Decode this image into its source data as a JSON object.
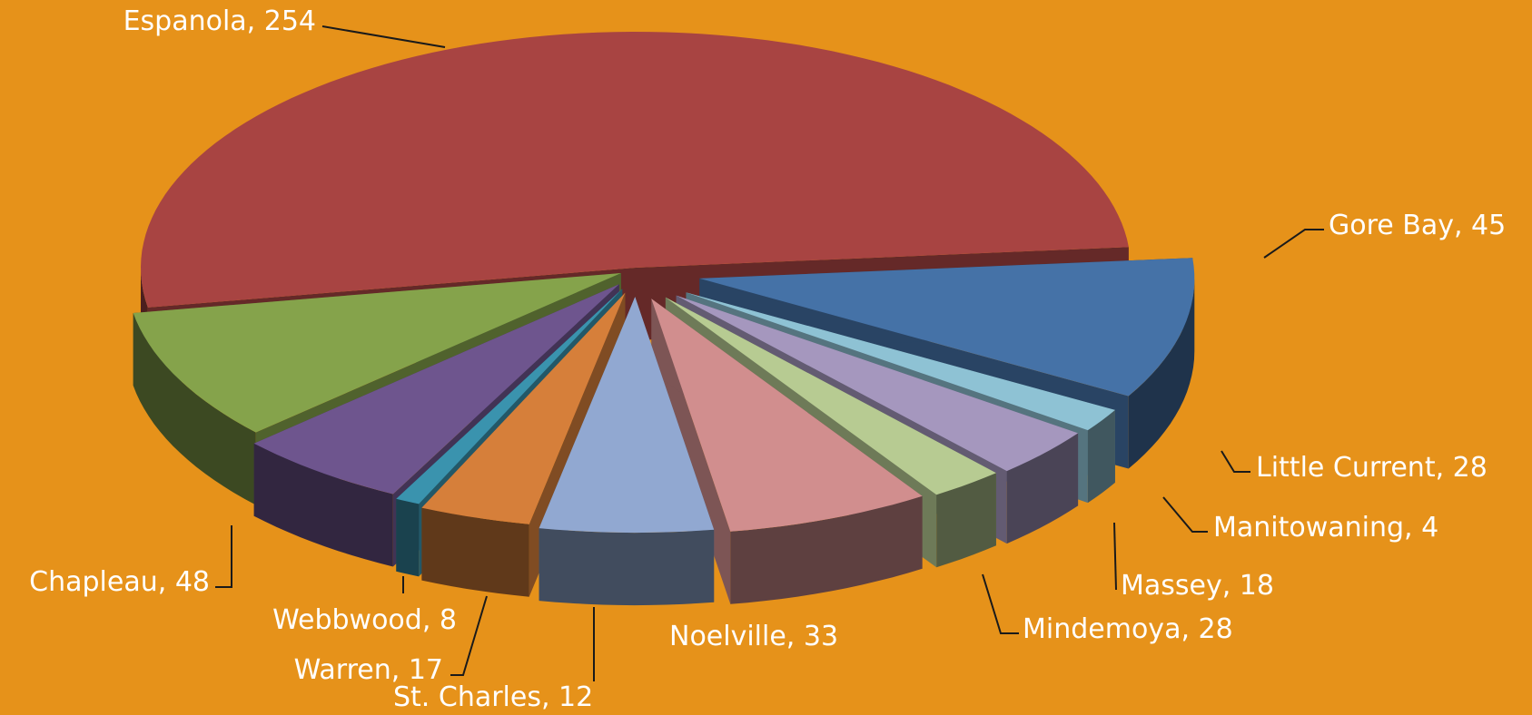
{
  "chart_data": {
    "type": "pie",
    "style": "3d-exploded",
    "background": "#E6921A",
    "legend": "none",
    "data_labels": "outside, name and value",
    "slices": [
      {
        "name": "Espanola",
        "value": 254,
        "label": "Espanola, 254",
        "color": "#A84442"
      },
      {
        "name": "Gore Bay",
        "value": 45,
        "label": "Gore Bay, 45",
        "color": "#85A34B"
      },
      {
        "name": "Little Current",
        "value": 28,
        "label": "Little Current, 28",
        "color": "#6E558E"
      },
      {
        "name": "Manitowaning",
        "value": 4,
        "label": "Manitowaning, 4",
        "color": "#3A93AE"
      },
      {
        "name": "Massey",
        "value": 18,
        "label": "Massey, 18",
        "color": "#D67F3A"
      },
      {
        "name": "Mindemoya",
        "value": 28,
        "label": "Mindemoya, 28",
        "color": "#91A8D1"
      },
      {
        "name": "Noelville",
        "value": 33,
        "label": "Noelville, 33",
        "color": "#D18E8E"
      },
      {
        "name": "St. Charles",
        "value": 12,
        "label": "St. Charles, 12",
        "color": "#B7CB92"
      },
      {
        "name": "Warren",
        "value": 17,
        "label": "Warren, 17",
        "color": "#A597BE"
      },
      {
        "name": "Webbwood",
        "value": 8,
        "label": "Webbwood, 8",
        "color": "#8EC2D4"
      },
      {
        "name": "Chapleau",
        "value": 48,
        "label": "Chapleau, 48",
        "color": "#4572A7"
      }
    ]
  }
}
